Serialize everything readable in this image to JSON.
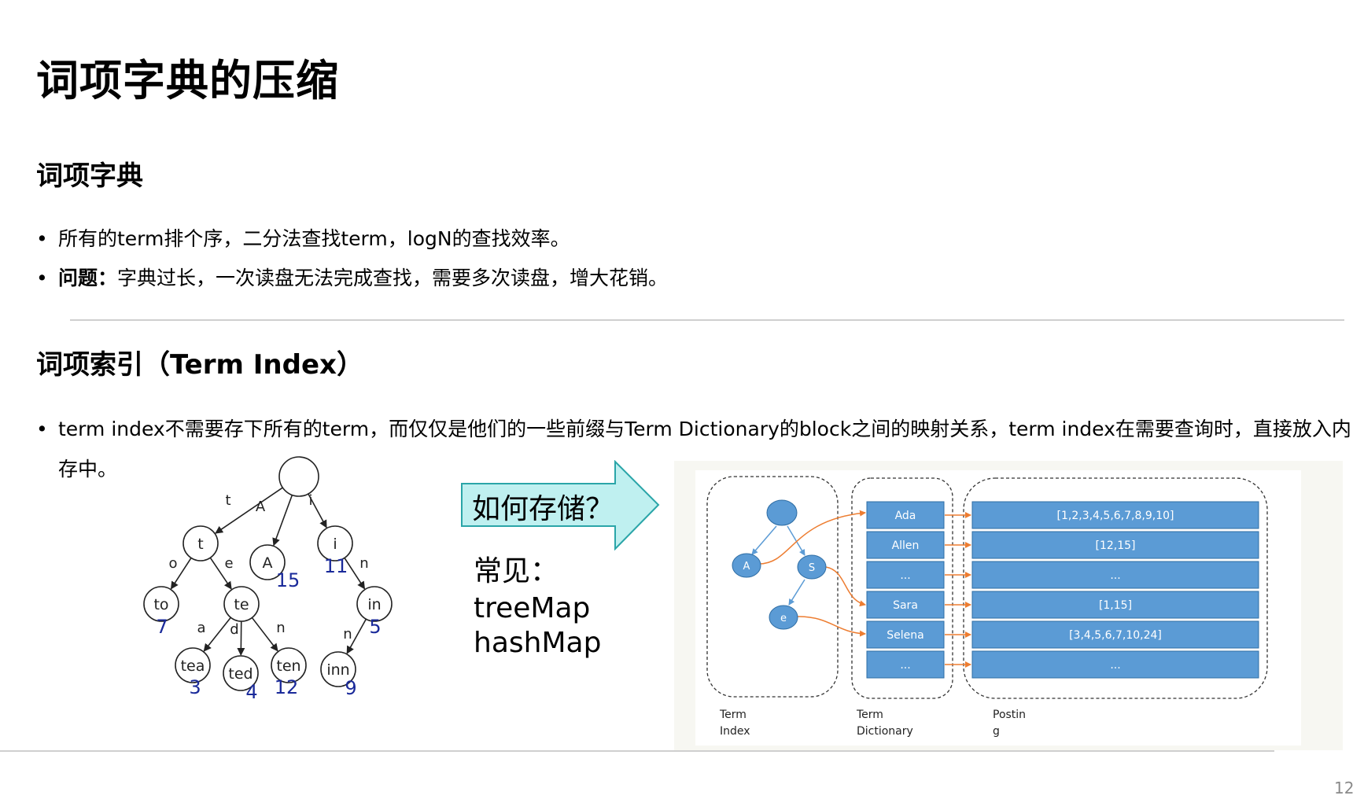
{
  "page_title": "词项字典的压缩",
  "section1": {
    "title": "词项字典",
    "bullets": [
      {
        "text": "所有的term排个序，二分法查找term，logN的查找效率。"
      },
      {
        "label": "问题：",
        "text": "字典过长，一次读盘无法完成查找，需要多次读盘，增大花销。"
      }
    ]
  },
  "section2": {
    "title": "词项索引（Term Index）",
    "bullet": "term index不需要存下所有的term，而仅仅是他们的一些前缀与Term Dictionary的block之间的映射关系，term index在需要查询时，直接放入内存中。"
  },
  "trie": {
    "nodes": [
      {
        "id": "root",
        "label": "",
        "value": ""
      },
      {
        "id": "t",
        "label": "t",
        "value": ""
      },
      {
        "id": "A",
        "label": "A",
        "value": "15"
      },
      {
        "id": "i",
        "label": "i",
        "value": "11"
      },
      {
        "id": "to",
        "label": "to",
        "value": "7"
      },
      {
        "id": "te",
        "label": "te",
        "value": ""
      },
      {
        "id": "in",
        "label": "in",
        "value": "5"
      },
      {
        "id": "tea",
        "label": "tea",
        "value": "3"
      },
      {
        "id": "ted",
        "label": "ted",
        "value": "4"
      },
      {
        "id": "ten",
        "label": "ten",
        "value": "12"
      },
      {
        "id": "inn",
        "label": "inn",
        "value": "9"
      }
    ],
    "edges": [
      {
        "from": "root",
        "to": "t",
        "label": "t"
      },
      {
        "from": "root",
        "to": "A",
        "label": "A"
      },
      {
        "from": "root",
        "to": "i",
        "label": "i"
      },
      {
        "from": "t",
        "to": "to",
        "label": "o"
      },
      {
        "from": "t",
        "to": "te",
        "label": "e"
      },
      {
        "from": "i",
        "to": "in",
        "label": "n"
      },
      {
        "from": "te",
        "to": "tea",
        "label": "a"
      },
      {
        "from": "te",
        "to": "ted",
        "label": "d"
      },
      {
        "from": "te",
        "to": "ten",
        "label": "n"
      },
      {
        "from": "in",
        "to": "inn",
        "label": "n"
      }
    ]
  },
  "callout": {
    "text": "如何存储？",
    "fill": "#bff0f0",
    "stroke": "#2aa5a8"
  },
  "common": {
    "label": "常见：",
    "items": [
      "treeMap",
      "hashMap"
    ]
  },
  "fst": {
    "index_nodes": [
      "A",
      "S",
      "e"
    ],
    "dictionary": [
      "Ada",
      "Allen",
      "...",
      "Sara",
      "Selena",
      "..."
    ],
    "postings": [
      "[1,2,3,4,5,6,7,8,9,10]",
      "[12,15]",
      "...",
      "[1,15]",
      "[3,4,5,6,7,10,24]",
      "..."
    ],
    "labels": {
      "term_index": [
        "Term",
        "Index"
      ],
      "term_dictionary": [
        "Term",
        "Dictionary"
      ],
      "posting": [
        "Postin",
        "g"
      ]
    },
    "colors": {
      "cell": "#5b9bd5",
      "arrow": "#ed7d31"
    }
  },
  "page_number": "12"
}
